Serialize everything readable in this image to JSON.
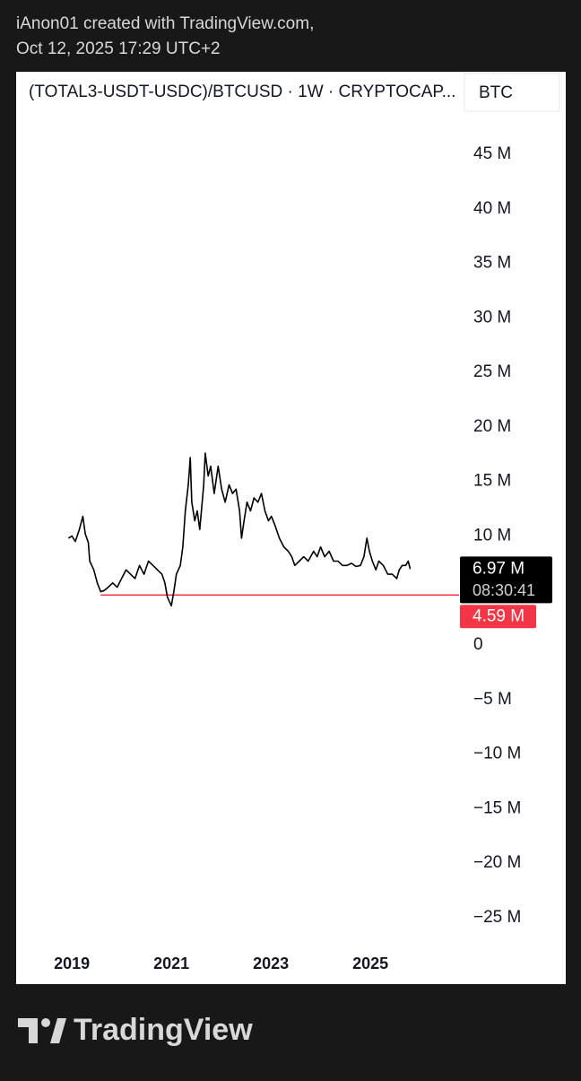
{
  "header": {
    "line1": "iAnon01 created with TradingView.com,",
    "line2": "Oct 12, 2025 17:29 UTC+2"
  },
  "footer": {
    "brand": "TradingView"
  },
  "chart_data": {
    "type": "line",
    "title": "(TOTAL3-USDT-USDC)/BTCUSD · 1W · CRYPTOCAP...",
    "currency": "BTC",
    "color": "#000000",
    "x": [
      2018.93,
      2019.0,
      2019.07,
      2019.15,
      2019.22,
      2019.27,
      2019.33,
      2019.36,
      2019.44,
      2019.51,
      2019.58,
      2019.65,
      2019.73,
      2019.82,
      2019.91,
      2020.0,
      2020.09,
      2020.18,
      2020.27,
      2020.36,
      2020.45,
      2020.54,
      2020.63,
      2020.72,
      2020.81,
      2020.87,
      2020.92,
      2021.0,
      2021.05,
      2021.1,
      2021.18,
      2021.23,
      2021.28,
      2021.34,
      2021.38,
      2021.41,
      2021.47,
      2021.52,
      2021.57,
      2021.65,
      2021.68,
      2021.74,
      2021.79,
      2021.86,
      2021.94,
      2022.01,
      2022.08,
      2022.16,
      2022.23,
      2022.3,
      2022.37,
      2022.41,
      2022.46,
      2022.52,
      2022.59,
      2022.66,
      2022.74,
      2022.81,
      2022.88,
      2022.95,
      2023.01,
      2023.08,
      2023.17,
      2023.26,
      2023.35,
      2023.42,
      2023.48,
      2023.57,
      2023.66,
      2023.75,
      2023.86,
      2023.93,
      2024.0,
      2024.08,
      2024.17,
      2024.26,
      2024.35,
      2024.44,
      2024.53,
      2024.62,
      2024.71,
      2024.8,
      2024.87,
      2024.93,
      2024.98,
      2025.04,
      2025.11,
      2025.17,
      2025.26,
      2025.35,
      2025.44,
      2025.53,
      2025.58,
      2025.64,
      2025.71,
      2025.76,
      2025.8
    ],
    "values": [
      9.8,
      10.0,
      9.5,
      10.6,
      11.8,
      10.2,
      9.4,
      7.7,
      6.9,
      5.7,
      4.9,
      5.0,
      5.3,
      5.7,
      5.3,
      6.1,
      6.9,
      6.5,
      6.1,
      7.3,
      6.5,
      7.7,
      7.3,
      6.9,
      6.5,
      5.7,
      4.4,
      3.6,
      4.9,
      6.5,
      7.3,
      9.0,
      12.3,
      14.7,
      17.2,
      13.1,
      11.4,
      12.3,
      10.6,
      14.7,
      17.6,
      15.5,
      16.4,
      13.9,
      16.4,
      14.3,
      13.1,
      14.7,
      13.9,
      14.3,
      12.3,
      9.8,
      11.4,
      13.1,
      12.3,
      13.5,
      13.1,
      13.9,
      12.3,
      11.4,
      11.8,
      11.0,
      9.8,
      9.0,
      8.6,
      8.1,
      7.3,
      7.7,
      8.1,
      7.7,
      8.6,
      8.1,
      9.0,
      8.1,
      8.6,
      7.7,
      7.7,
      7.3,
      7.3,
      7.5,
      7.2,
      7.3,
      8.1,
      9.8,
      8.6,
      7.7,
      6.9,
      7.7,
      7.3,
      6.5,
      6.5,
      6.1,
      6.9,
      7.3,
      7.3,
      7.7,
      6.97
    ],
    "xlim": [
      2017.88,
      2026.8
    ],
    "xticks": [
      2019,
      2021,
      2023,
      2025
    ],
    "ylim": [
      -27,
      49
    ],
    "yticks": [
      {
        "value": 45,
        "label": "45 M"
      },
      {
        "value": 40,
        "label": "40 M"
      },
      {
        "value": 35,
        "label": "35 M"
      },
      {
        "value": 30,
        "label": "30 M"
      },
      {
        "value": 25,
        "label": "25 M"
      },
      {
        "value": 20,
        "label": "20 M"
      },
      {
        "value": 15,
        "label": "15 M"
      },
      {
        "value": 10,
        "label": "10 M"
      },
      0,
      {
        "value": -5,
        "label": "−5 M"
      },
      {
        "value": -10,
        "label": "−10 M"
      },
      {
        "value": -15,
        "label": "−15 M"
      },
      {
        "value": -20,
        "label": "−20 M"
      },
      {
        "value": -25,
        "label": "−25 M"
      }
    ],
    "last_price": {
      "value": 6.97,
      "label": "6.97 M",
      "countdown": "08:30:41"
    },
    "hline": {
      "value": 4.59,
      "label": "4.59 M",
      "color": "#f23645",
      "start": 2019.58
    }
  }
}
